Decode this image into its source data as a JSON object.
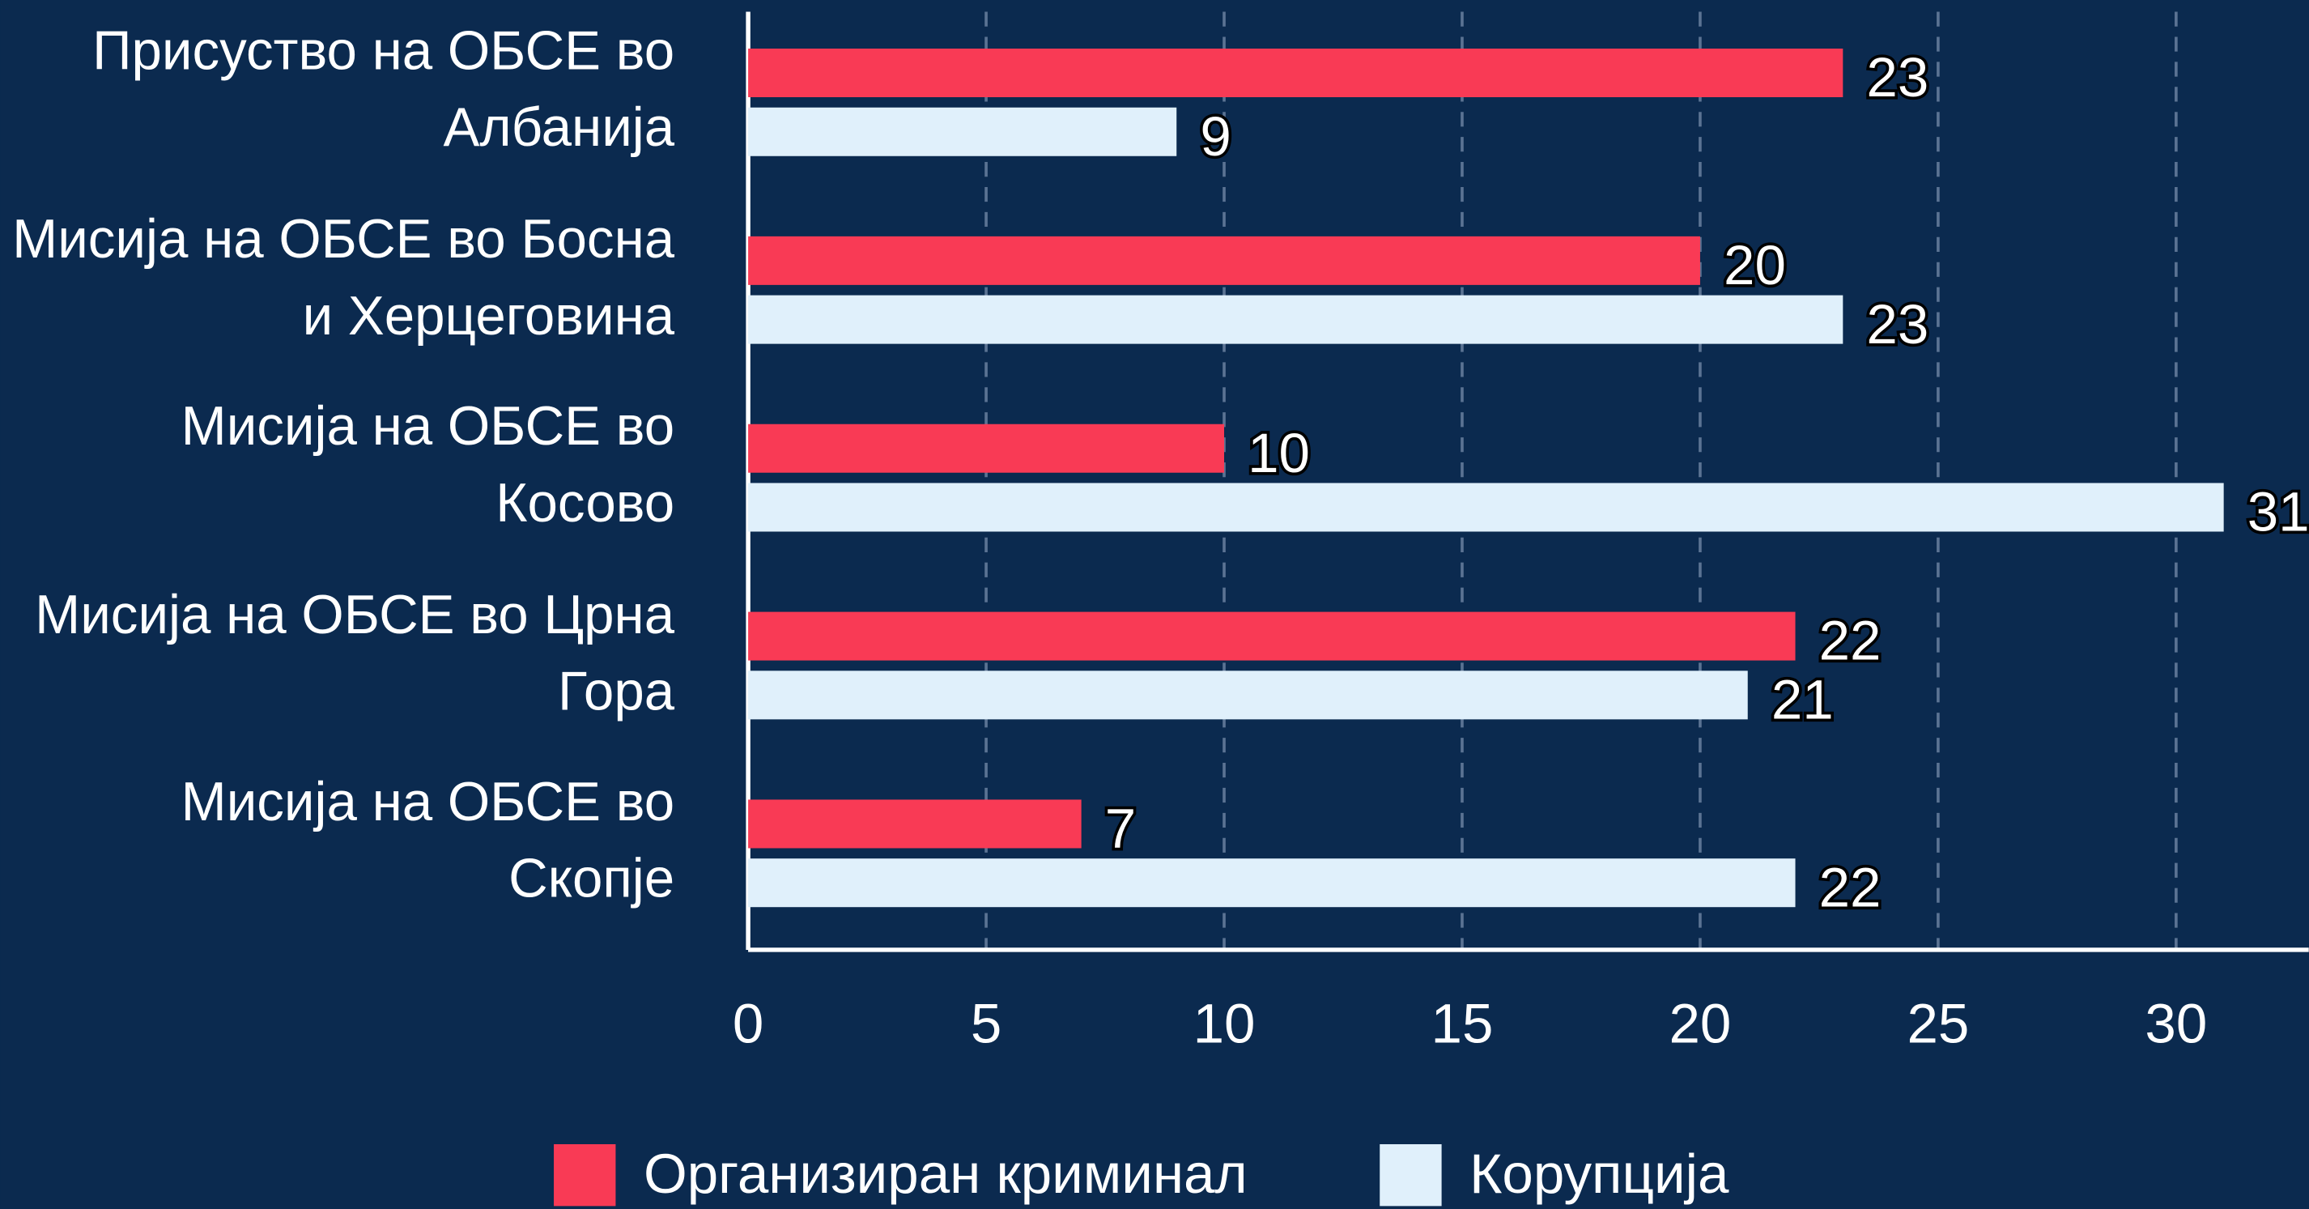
{
  "chart_data": {
    "type": "hbar",
    "categories": [
      "Присуство на ОБСЕ во Албанија",
      "Мисија на ОБСЕ во Босна и Херцеговина",
      "Мисија на ОБСЕ во Косово",
      "Мисија на ОБСЕ во Црна Гора",
      "Мисија на ОБСЕ во Скопје"
    ],
    "series": [
      {
        "name": "Организиран криминал",
        "color": "#f93a55",
        "values": [
          23,
          20,
          10,
          22,
          7
        ]
      },
      {
        "name": "Корупција",
        "color": "#e0f0fb",
        "values": [
          9,
          23,
          31,
          21,
          22
        ]
      }
    ],
    "xlim": [
      0,
      33
    ],
    "xticks": [
      0,
      5,
      10,
      15,
      20,
      25,
      30
    ],
    "grid": true,
    "legend": "bottom"
  }
}
